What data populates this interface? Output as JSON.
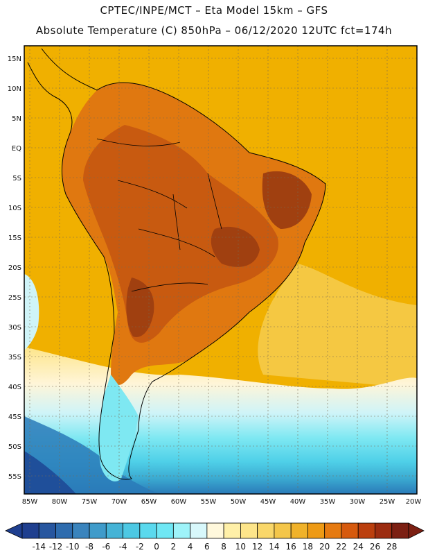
{
  "header": {
    "line1": "CPTEC/INPE/MCT –  Eta Model 15km – GFS",
    "line2": "Absolute Temperature (C) 850hPa – 06/12/2020 12UTC fct=174h"
  },
  "map": {
    "lat_ticks": [
      "15N",
      "10N",
      "5N",
      "EQ",
      "5S",
      "10S",
      "15S",
      "20S",
      "25S",
      "30S",
      "35S",
      "40S",
      "45S",
      "50S",
      "55S"
    ],
    "lon_ticks": [
      "85W",
      "80W",
      "75W",
      "70W",
      "65W",
      "60W",
      "55W",
      "50W",
      "45W",
      "40W",
      "35W",
      "30W",
      "25W",
      "20W"
    ],
    "colors": {
      "ocean_warm": "#f0b000",
      "land_hot": "#e07810",
      "land_hotter": "#c85a10",
      "land_hottest": "#a04010",
      "mid_yellow": "#f5c842",
      "light_yellow": "#fbe27a",
      "cream": "#fff5d8",
      "pale_cyan": "#cff4f8",
      "cyan": "#7ee8f2",
      "sky": "#4fd0e8",
      "teal": "#3aa8d0",
      "blue": "#2a7ab8",
      "deep_blue": "#1f4f9a"
    }
  },
  "colorbar": {
    "labels": [
      "-14",
      "-12",
      "-10",
      "-8",
      "-6",
      "-4",
      "-2",
      "0",
      "2",
      "4",
      "6",
      "8",
      "10",
      "12",
      "14",
      "16",
      "18",
      "20",
      "22",
      "24",
      "26",
      "28"
    ],
    "colors": [
      "#1f3f8f",
      "#27569f",
      "#2e6cae",
      "#3a84bd",
      "#3f9bca",
      "#45b3d6",
      "#4dc8e3",
      "#5ad9ee",
      "#6fe7f4",
      "#9ef3f9",
      "#d8f8fb",
      "#fff8dc",
      "#fff0a8",
      "#fde58a",
      "#f9d76a",
      "#f4c64a",
      "#f0b22a",
      "#ee9a14",
      "#e67a10",
      "#d65a0e",
      "#bb3f0e",
      "#9c2c10",
      "#7c1f12"
    ]
  }
}
